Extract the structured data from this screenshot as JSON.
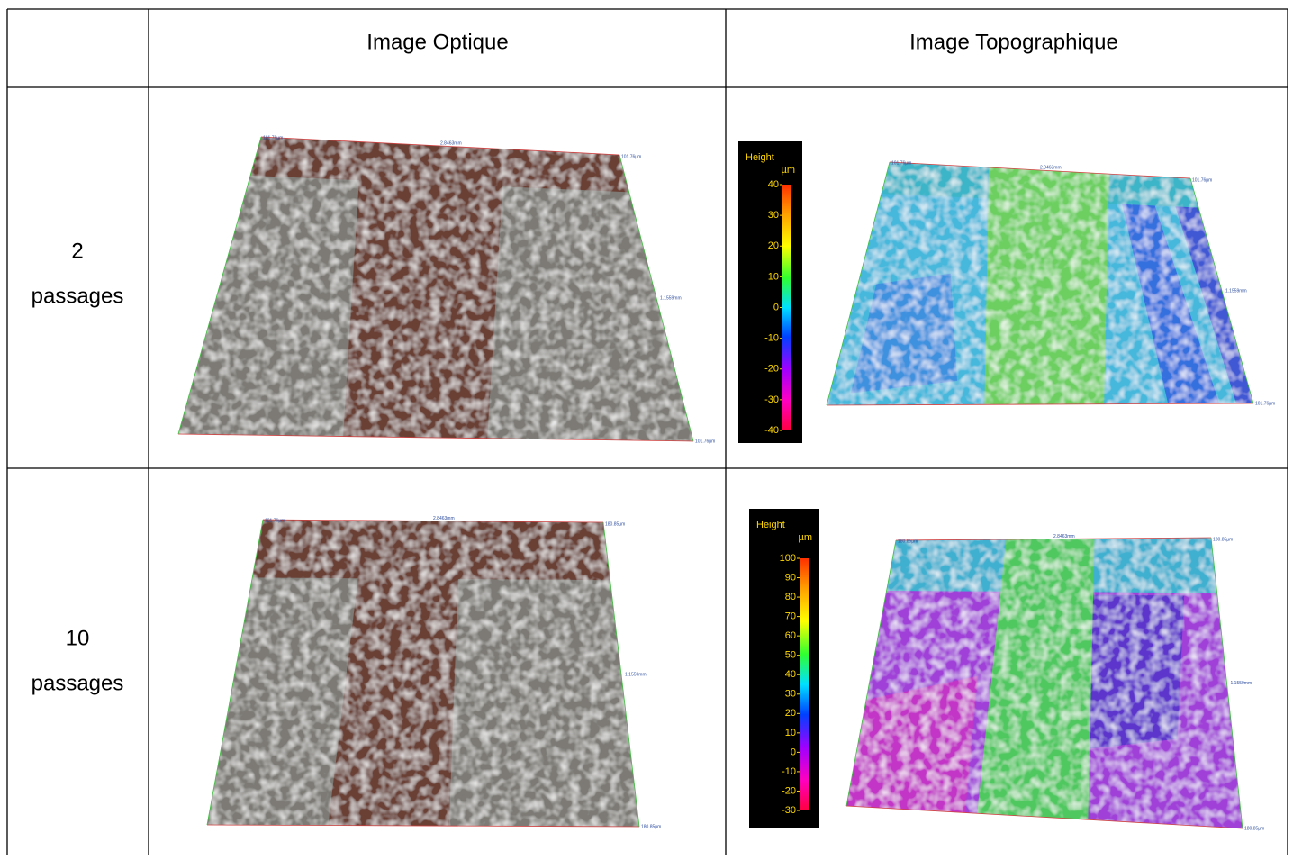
{
  "table": {
    "header": {
      "optical": "Image Optique",
      "topographic": "Image Topographique"
    },
    "rows": [
      {
        "label": [
          "2",
          "passages"
        ],
        "optical_labels": [
          "101.76µm",
          "2.8463mm",
          "101.76µm",
          "1.1559mm",
          "101.76µm"
        ],
        "topographic_labels": [
          "101.76µm",
          "2.8463mm",
          "101.76µm",
          "1.1559mm",
          "101.76µm"
        ],
        "colorbar": {
          "title": "Height",
          "unit": "µm",
          "ticks": [
            40,
            30,
            20,
            10,
            0,
            -10,
            -20,
            -30,
            -40
          ]
        }
      },
      {
        "label": [
          "10",
          "passages"
        ],
        "optical_labels": [
          "101.76µm",
          "2.8463mm",
          "180.85µm",
          "1.1559mm",
          "180.85µm"
        ],
        "topographic_labels": [
          "180.85µm",
          "2.8463mm",
          "180.85µm",
          "1.1559mm",
          "180.85µm"
        ],
        "colorbar": {
          "title": "Height",
          "unit": "µm",
          "ticks": [
            100,
            90,
            80,
            70,
            60,
            50,
            40,
            30,
            20,
            10,
            0,
            -10,
            -20,
            -30
          ]
        }
      }
    ]
  }
}
